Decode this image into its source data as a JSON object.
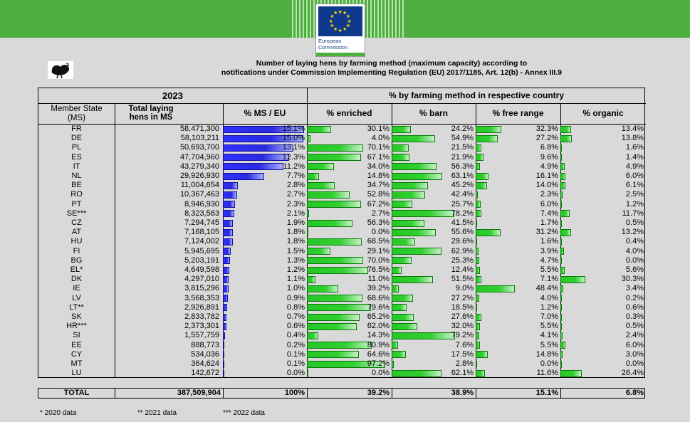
{
  "header": {
    "logo_text_line1": "European",
    "logo_text_line2": "Commission",
    "title_line1": "Number of laying hens by farming method (maximum capacity) according to",
    "title_line2": "notifications under Commission Implementing Regulation (EU) 2017/1185, Art. 12(b) - Annex III.9"
  },
  "table": {
    "year_label": "2023",
    "method_group_label": "% by farming method in respective country",
    "col_member_state_1": "Member State",
    "col_member_state_2": "(MS)",
    "col_total_1": "Total laying",
    "col_total_2": "hens in MS",
    "col_share": "% MS / EU",
    "col_enriched": "% enriched",
    "col_barn": "% barn",
    "col_free": "% free range",
    "col_organic": "% organic",
    "rows": [
      {
        "ms": "FR",
        "total": "58,471,300",
        "share": "15.1%",
        "enriched": "30.1%",
        "barn": "24.2%",
        "free": "32.3%",
        "organic": "13.4%"
      },
      {
        "ms": "DE",
        "total": "58,103,211",
        "share": "15.0%",
        "enriched": "4.0%",
        "barn": "54.9%",
        "free": "27.2%",
        "organic": "13.8%"
      },
      {
        "ms": "PL",
        "total": "50,693,700",
        "share": "13.1%",
        "enriched": "70.1%",
        "barn": "21.5%",
        "free": "6.8%",
        "organic": "1.6%"
      },
      {
        "ms": "ES",
        "total": "47,704,960",
        "share": "12.3%",
        "enriched": "67.1%",
        "barn": "21.9%",
        "free": "9.6%",
        "organic": "1.4%"
      },
      {
        "ms": "IT",
        "total": "43,279,340",
        "share": "11.2%",
        "enriched": "34.0%",
        "barn": "56.3%",
        "free": "4.9%",
        "organic": "4.9%"
      },
      {
        "ms": "NL",
        "total": "29,926,930",
        "share": "7.7%",
        "enriched": "14.8%",
        "barn": "63.1%",
        "free": "16.1%",
        "organic": "6.0%"
      },
      {
        "ms": "BE",
        "total": "11,004,654",
        "share": "2.8%",
        "enriched": "34.7%",
        "barn": "45.2%",
        "free": "14.0%",
        "organic": "6.1%"
      },
      {
        "ms": "RO",
        "total": "10,367,463",
        "share": "2.7%",
        "enriched": "52.8%",
        "barn": "42.4%",
        "free": "2.3%",
        "organic": "2.5%"
      },
      {
        "ms": "PT",
        "total": "8,946,930",
        "share": "2.3%",
        "enriched": "67.2%",
        "barn": "25.7%",
        "free": "6.0%",
        "organic": "1.2%"
      },
      {
        "ms": "SE***",
        "total": "8,323,583",
        "share": "2.1%",
        "enriched": "2.7%",
        "barn": "78.2%",
        "free": "7.4%",
        "organic": "11.7%"
      },
      {
        "ms": "CZ",
        "total": "7,294,745",
        "share": "1.9%",
        "enriched": "56.3%",
        "barn": "41.5%",
        "free": "1.7%",
        "organic": "0.5%"
      },
      {
        "ms": "AT",
        "total": "7,168,105",
        "share": "1.8%",
        "enriched": "0.0%",
        "barn": "55.6%",
        "free": "31.2%",
        "organic": "13.2%"
      },
      {
        "ms": "HU",
        "total": "7,124,002",
        "share": "1.8%",
        "enriched": "68.5%",
        "barn": "29.6%",
        "free": "1.6%",
        "organic": "0.4%"
      },
      {
        "ms": "FI",
        "total": "5,945,695",
        "share": "1.5%",
        "enriched": "29.1%",
        "barn": "62.9%",
        "free": "3.9%",
        "organic": "4.0%"
      },
      {
        "ms": "BG",
        "total": "5,203,191",
        "share": "1.3%",
        "enriched": "70.0%",
        "barn": "25.3%",
        "free": "4.7%",
        "organic": "0.0%"
      },
      {
        "ms": "EL*",
        "total": "4,649,598",
        "share": "1.2%",
        "enriched": "76.5%",
        "barn": "12.4%",
        "free": "5.5%",
        "organic": "5.6%"
      },
      {
        "ms": "DK",
        "total": "4,297,010",
        "share": "1.1%",
        "enriched": "11.0%",
        "barn": "51.5%",
        "free": "7.1%",
        "organic": "30.3%"
      },
      {
        "ms": "IE",
        "total": "3,815,296",
        "share": "1.0%",
        "enriched": "39.2%",
        "barn": "9.0%",
        "free": "48.4%",
        "organic": "3.4%"
      },
      {
        "ms": "LV",
        "total": "3,568,353",
        "share": "0.9%",
        "enriched": "68.6%",
        "barn": "27.2%",
        "free": "4.0%",
        "organic": "0.2%"
      },
      {
        "ms": "LT**",
        "total": "2,926,891",
        "share": "0.8%",
        "enriched": "79.6%",
        "barn": "18.5%",
        "free": "1.2%",
        "organic": "0.6%"
      },
      {
        "ms": "SK",
        "total": "2,833,782",
        "share": "0.7%",
        "enriched": "65.2%",
        "barn": "27.6%",
        "free": "7.0%",
        "organic": "0.3%"
      },
      {
        "ms": "HR***",
        "total": "2,373,301",
        "share": "0.6%",
        "enriched": "62.0%",
        "barn": "32.0%",
        "free": "5.5%",
        "organic": "0.5%"
      },
      {
        "ms": "SI",
        "total": "1,557,759",
        "share": "0.4%",
        "enriched": "14.3%",
        "barn": "79.2%",
        "free": "4.1%",
        "organic": "2.4%"
      },
      {
        "ms": "EE",
        "total": "888,773",
        "share": "0.2%",
        "enriched": "80.9%",
        "barn": "7.6%",
        "free": "5.5%",
        "organic": "6.0%"
      },
      {
        "ms": "CY",
        "total": "534,036",
        "share": "0.1%",
        "enriched": "64.6%",
        "barn": "17.5%",
        "free": "14.8%",
        "organic": "3.0%"
      },
      {
        "ms": "MT",
        "total": "364,624",
        "share": "0.1%",
        "enriched": "97.2%",
        "barn": "2.8%",
        "free": "0.0%",
        "organic": "0.0%"
      },
      {
        "ms": "LU",
        "total": "142,672",
        "share": "0.0%",
        "enriched": "0.0%",
        "barn": "62.1%",
        "free": "11.6%",
        "organic": "26.4%"
      }
    ],
    "total_row": {
      "label": "TOTAL",
      "total": "387,509,904",
      "share": "100%",
      "enriched": "39.2%",
      "barn": "38.9%",
      "free": "15.1%",
      "organic": "6.8%"
    }
  },
  "footnotes": {
    "note1": "* 2020 data",
    "note2": "** 2021 data",
    "note3": "*** 2022 data"
  },
  "colors": {
    "header_green": "#4caf3e",
    "bar_blue": "#3030ff",
    "bar_green": "#2fd02f",
    "background": "#d9d9d9"
  }
}
